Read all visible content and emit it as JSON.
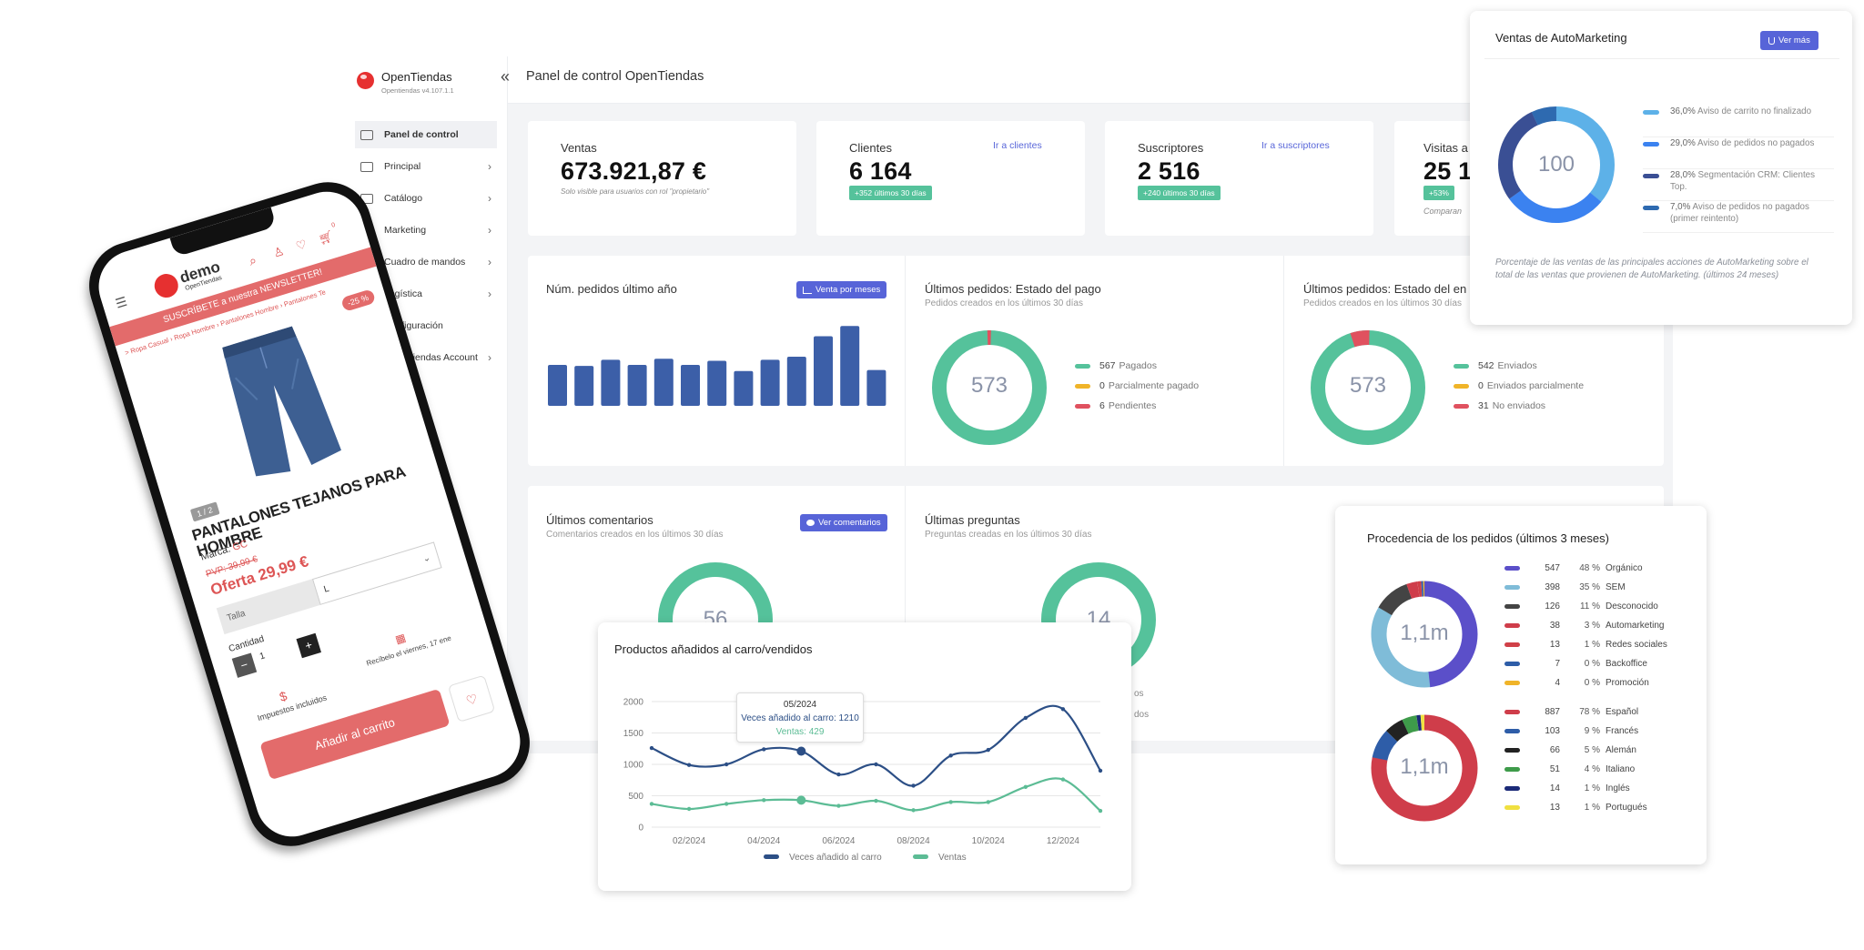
{
  "app": {
    "name": "OpenTiendas",
    "version": "Opentiendas v4.107.1.1",
    "page_title": "Panel de control OpenTiendas",
    "collapse_icon": "double-chevron-left-icon"
  },
  "sidebar": {
    "items": [
      {
        "label": "Panel de control",
        "icon": "bar-chart-icon",
        "active": true
      },
      {
        "label": "Principal",
        "icon": "dashboard-icon"
      },
      {
        "label": "Catálogo",
        "icon": "book-icon"
      },
      {
        "label": "Marketing",
        "icon": "newspaper-icon"
      },
      {
        "label": "Cuadro de mandos",
        "icon": "chart-icon"
      },
      {
        "label": "Logística",
        "icon": "truck-icon"
      },
      {
        "label": "Configuración",
        "icon": "gear-icon"
      },
      {
        "label": "OpenTiendas Account",
        "icon": "user-icon"
      }
    ]
  },
  "kpis": {
    "ventas": {
      "label": "Ventas",
      "value": "673.921,87 €",
      "note": "Solo visible para usuarios con rol \"propietario\""
    },
    "clientes": {
      "label": "Clientes",
      "value": "6 164",
      "link": "Ir a clientes",
      "badge": "+352 últimos 30 días"
    },
    "suscriptores": {
      "label": "Suscriptores",
      "value": "2 516",
      "link": "Ir a suscriptores",
      "badge": "+240 últimos 30 días"
    },
    "visitas": {
      "label": "Visitas a",
      "value": "25 1",
      "badge": "+53%",
      "note": "Comparan"
    }
  },
  "orders_year": {
    "title": "Núm. pedidos último año",
    "button": "Venta por meses"
  },
  "payment_status": {
    "title": "Últimos pedidos: Estado del pago",
    "subtitle": "Pedidos creados en los últimos 30 días",
    "total": "573",
    "legend": [
      {
        "n": "567",
        "label": "Pagados",
        "color": "#55c29b"
      },
      {
        "n": "0",
        "label": "Parcialmente pagado",
        "color": "#f0b429"
      },
      {
        "n": "6",
        "label": "Pendientes",
        "color": "#e0515f"
      }
    ]
  },
  "shipping_status": {
    "title": "Últimos pedidos: Estado del en",
    "subtitle": "Pedidos creados en los últimos 30 días",
    "total": "573",
    "legend": [
      {
        "n": "542",
        "label": "Enviados",
        "color": "#55c29b"
      },
      {
        "n": "0",
        "label": "Enviados parcialmente",
        "color": "#f0b429"
      },
      {
        "n": "31",
        "label": "No enviados",
        "color": "#e0515f"
      }
    ]
  },
  "comments": {
    "title": "Últimos comentarios",
    "subtitle": "Comentarios creados en los últimos 30 días",
    "button": "Ver comentarios",
    "total": "56"
  },
  "questions": {
    "title": "Últimas preguntas",
    "subtitle": "Preguntas creadas en los últimos 30 días",
    "total": "14",
    "legend_fragment_1": "os",
    "legend_fragment_2": "dos"
  },
  "automarketing": {
    "title": "Ventas de AutoMarketing",
    "button": "Ver más",
    "total": "100",
    "legend": [
      {
        "pct": "36,0%",
        "label": "Aviso de carrito no finalizado",
        "color": "#5db1e8"
      },
      {
        "pct": "29,0%",
        "label": "Aviso de pedidos no pagados",
        "color": "#3b82f0"
      },
      {
        "pct": "28,0%",
        "label": "Segmentación CRM: Clientes Top.",
        "color": "#3a4f94"
      },
      {
        "pct": "7,0%",
        "label": "Aviso de pedidos no pagados (primer reintento)",
        "color": "#2e6ab0"
      }
    ],
    "note": "Porcentaje de las ventas de las principales acciones de AutoMarketing sobre el total de las ventas que provienen de AutoMarketing. (últimos 24 meses)"
  },
  "origin": {
    "title": "Procedencia de los pedidos (últimos 3 meses)",
    "total_top": "1,1m",
    "total_bottom": "1,1m",
    "sources": [
      {
        "n": "547",
        "pct": "48 %",
        "label": "Orgánico",
        "color": "#5b4fc9"
      },
      {
        "n": "398",
        "pct": "35 %",
        "label": "SEM",
        "color": "#7fbcd8"
      },
      {
        "n": "126",
        "pct": "11 %",
        "label": "Desconocido",
        "color": "#444444"
      },
      {
        "n": "38",
        "pct": "3 %",
        "label": "Automarketing",
        "color": "#cf3d4a"
      },
      {
        "n": "13",
        "pct": "1 %",
        "label": "Redes sociales",
        "color": "#d04048"
      },
      {
        "n": "7",
        "pct": "0 %",
        "label": "Backoffice",
        "color": "#2e5da8"
      },
      {
        "n": "4",
        "pct": "0 %",
        "label": "Promoción",
        "color": "#f0b429"
      }
    ],
    "languages": [
      {
        "n": "887",
        "pct": "78 %",
        "label": "Español",
        "color": "#cf3d4a"
      },
      {
        "n": "103",
        "pct": "9 %",
        "label": "Francés",
        "color": "#2e5da8"
      },
      {
        "n": "66",
        "pct": "5 %",
        "label": "Alemán",
        "color": "#222222"
      },
      {
        "n": "51",
        "pct": "4 %",
        "label": "Italiano",
        "color": "#3e9b4a"
      },
      {
        "n": "14",
        "pct": "1 %",
        "label": "Inglés",
        "color": "#1b2a78"
      },
      {
        "n": "13",
        "pct": "1 %",
        "label": "Portugués",
        "color": "#f0e040"
      }
    ]
  },
  "cart_chart": {
    "title": "Productos añadidos al carro/vendidos",
    "tooltip": {
      "date": "05/2024",
      "line1": "Veces añadido al carro: 1210",
      "line2": "Ventas: 429"
    }
  },
  "phone": {
    "brand": "demo",
    "brand_sub": "OpenTiendas",
    "banner": "SUSCRÍBETE a nuestra NEWSLETTER!",
    "breadcrumb": "> Ropa Casual › Ropa Hombre › Pantalones Hombre › Pantalones Te",
    "discount": "-25 %",
    "pager": "1 / 2",
    "product": "PANTALONES TEJANOS PARA HOMBRE",
    "brand_label": "Marca:",
    "brand_value": "GC",
    "pvp": "PVP: 39,99 €",
    "offer": "Oferta 29,99 €",
    "size_label": "Talla",
    "size_value": "L",
    "qty_label": "Cantidad",
    "qty": "1",
    "taxes": "Impuestos incluidos",
    "delivery": "Recíbelo el viernes, 17 ene",
    "cart_button": "Añadir al carrito",
    "cart_count": "0"
  },
  "chart_data": [
    {
      "type": "bar",
      "title": "Núm. pedidos último año",
      "values": [
        40,
        39,
        45,
        40,
        46,
        40,
        44,
        34,
        45,
        48,
        68,
        78,
        35
      ],
      "color": "#3c5fa8"
    },
    {
      "type": "line",
      "title": "Productos añadidos al carro/vendidos",
      "x": [
        "01/2024",
        "02/2024",
        "03/2024",
        "04/2024",
        "05/2024",
        "06/2024",
        "07/2024",
        "08/2024",
        "09/2024",
        "10/2024",
        "11/2024",
        "12/2024",
        "01/2025"
      ],
      "x_ticks": [
        "02/2024",
        "04/2024",
        "06/2024",
        "08/2024",
        "10/2024",
        "12/2024"
      ],
      "ylim": [
        0,
        2000
      ],
      "y_ticks": [
        "0",
        "500",
        "1000",
        "1500",
        "2000"
      ],
      "series": [
        {
          "name": "Veces añadido al carro",
          "color": "#2c4f86",
          "values": [
            1260,
            990,
            1000,
            1240,
            1210,
            840,
            1000,
            660,
            1140,
            1230,
            1740,
            1880,
            900
          ]
        },
        {
          "name": "Ventas",
          "color": "#5cbc95",
          "values": [
            370,
            290,
            370,
            430,
            429,
            340,
            420,
            270,
            400,
            400,
            640,
            760,
            260
          ]
        }
      ]
    }
  ]
}
